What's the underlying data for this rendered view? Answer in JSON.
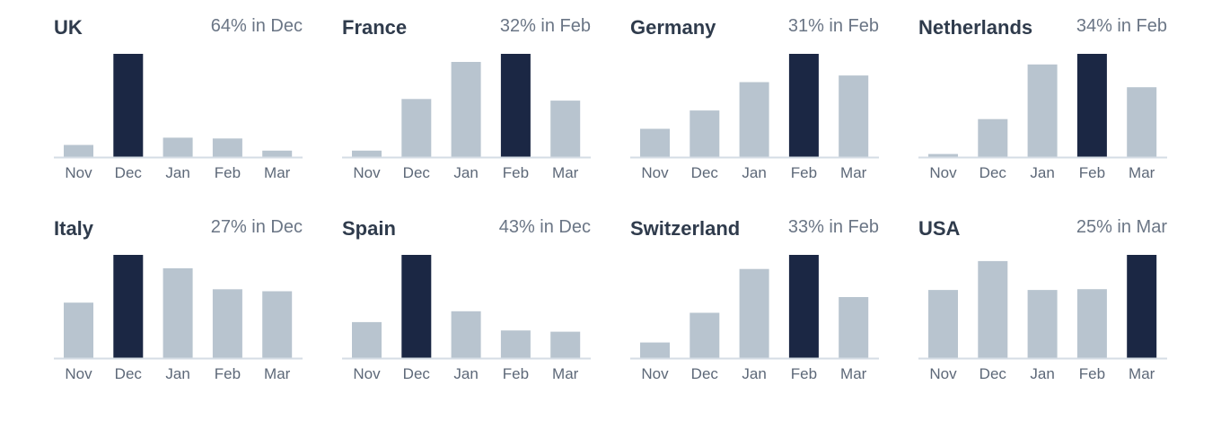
{
  "colors": {
    "bar": "#b8c4cf",
    "highlight": "#1b2744",
    "baseline": "#d5dde5"
  },
  "chart_data": [
    {
      "type": "bar",
      "title": "UK",
      "peak_label": "64% in Dec",
      "categories": [
        "Nov",
        "Dec",
        "Jan",
        "Feb",
        "Mar"
      ],
      "values": [
        7.5,
        64,
        12,
        11.5,
        4
      ],
      "ylim": [
        0,
        64
      ],
      "highlight": "Dec"
    },
    {
      "type": "bar",
      "title": "France",
      "peak_label": "32% in Feb",
      "categories": [
        "Nov",
        "Dec",
        "Jan",
        "Feb",
        "Mar"
      ],
      "values": [
        2,
        18,
        29.5,
        32,
        17.5
      ],
      "ylim": [
        0,
        32
      ],
      "highlight": "Feb"
    },
    {
      "type": "bar",
      "title": "Germany",
      "peak_label": "31% in Feb",
      "categories": [
        "Nov",
        "Dec",
        "Jan",
        "Feb",
        "Mar"
      ],
      "values": [
        8.5,
        14,
        22.5,
        31,
        24.5
      ],
      "ylim": [
        0,
        31
      ],
      "highlight": "Feb"
    },
    {
      "type": "bar",
      "title": "Netherlands",
      "peak_label": "34% in Feb",
      "categories": [
        "Nov",
        "Dec",
        "Jan",
        "Feb",
        "Mar"
      ],
      "values": [
        1,
        12.5,
        30.5,
        34,
        23
      ],
      "ylim": [
        0,
        34
      ],
      "highlight": "Feb"
    },
    {
      "type": "bar",
      "title": "Italy",
      "peak_label": "27% in Dec",
      "categories": [
        "Nov",
        "Dec",
        "Jan",
        "Feb",
        "Mar"
      ],
      "values": [
        14.5,
        27,
        23.5,
        18,
        17.5
      ],
      "ylim": [
        0,
        27
      ],
      "highlight": "Dec"
    },
    {
      "type": "bar",
      "title": "Spain",
      "peak_label": "43% in Dec",
      "categories": [
        "Nov",
        "Dec",
        "Jan",
        "Feb",
        "Mar"
      ],
      "values": [
        15,
        43,
        19.5,
        11.5,
        11
      ],
      "ylim": [
        0,
        43
      ],
      "highlight": "Dec"
    },
    {
      "type": "bar",
      "title": "Switzerland",
      "peak_label": "33% in Feb",
      "categories": [
        "Nov",
        "Dec",
        "Jan",
        "Feb",
        "Mar"
      ],
      "values": [
        5,
        14.5,
        28.5,
        33,
        19.5
      ],
      "ylim": [
        0,
        33
      ],
      "highlight": "Feb"
    },
    {
      "type": "bar",
      "title": "USA",
      "peak_label": "25% in Mar",
      "categories": [
        "Nov",
        "Dec",
        "Jan",
        "Feb",
        "Mar"
      ],
      "values": [
        16.5,
        23.5,
        16.5,
        16.7,
        25
      ],
      "ylim": [
        0,
        25
      ],
      "highlight": "Mar"
    }
  ]
}
